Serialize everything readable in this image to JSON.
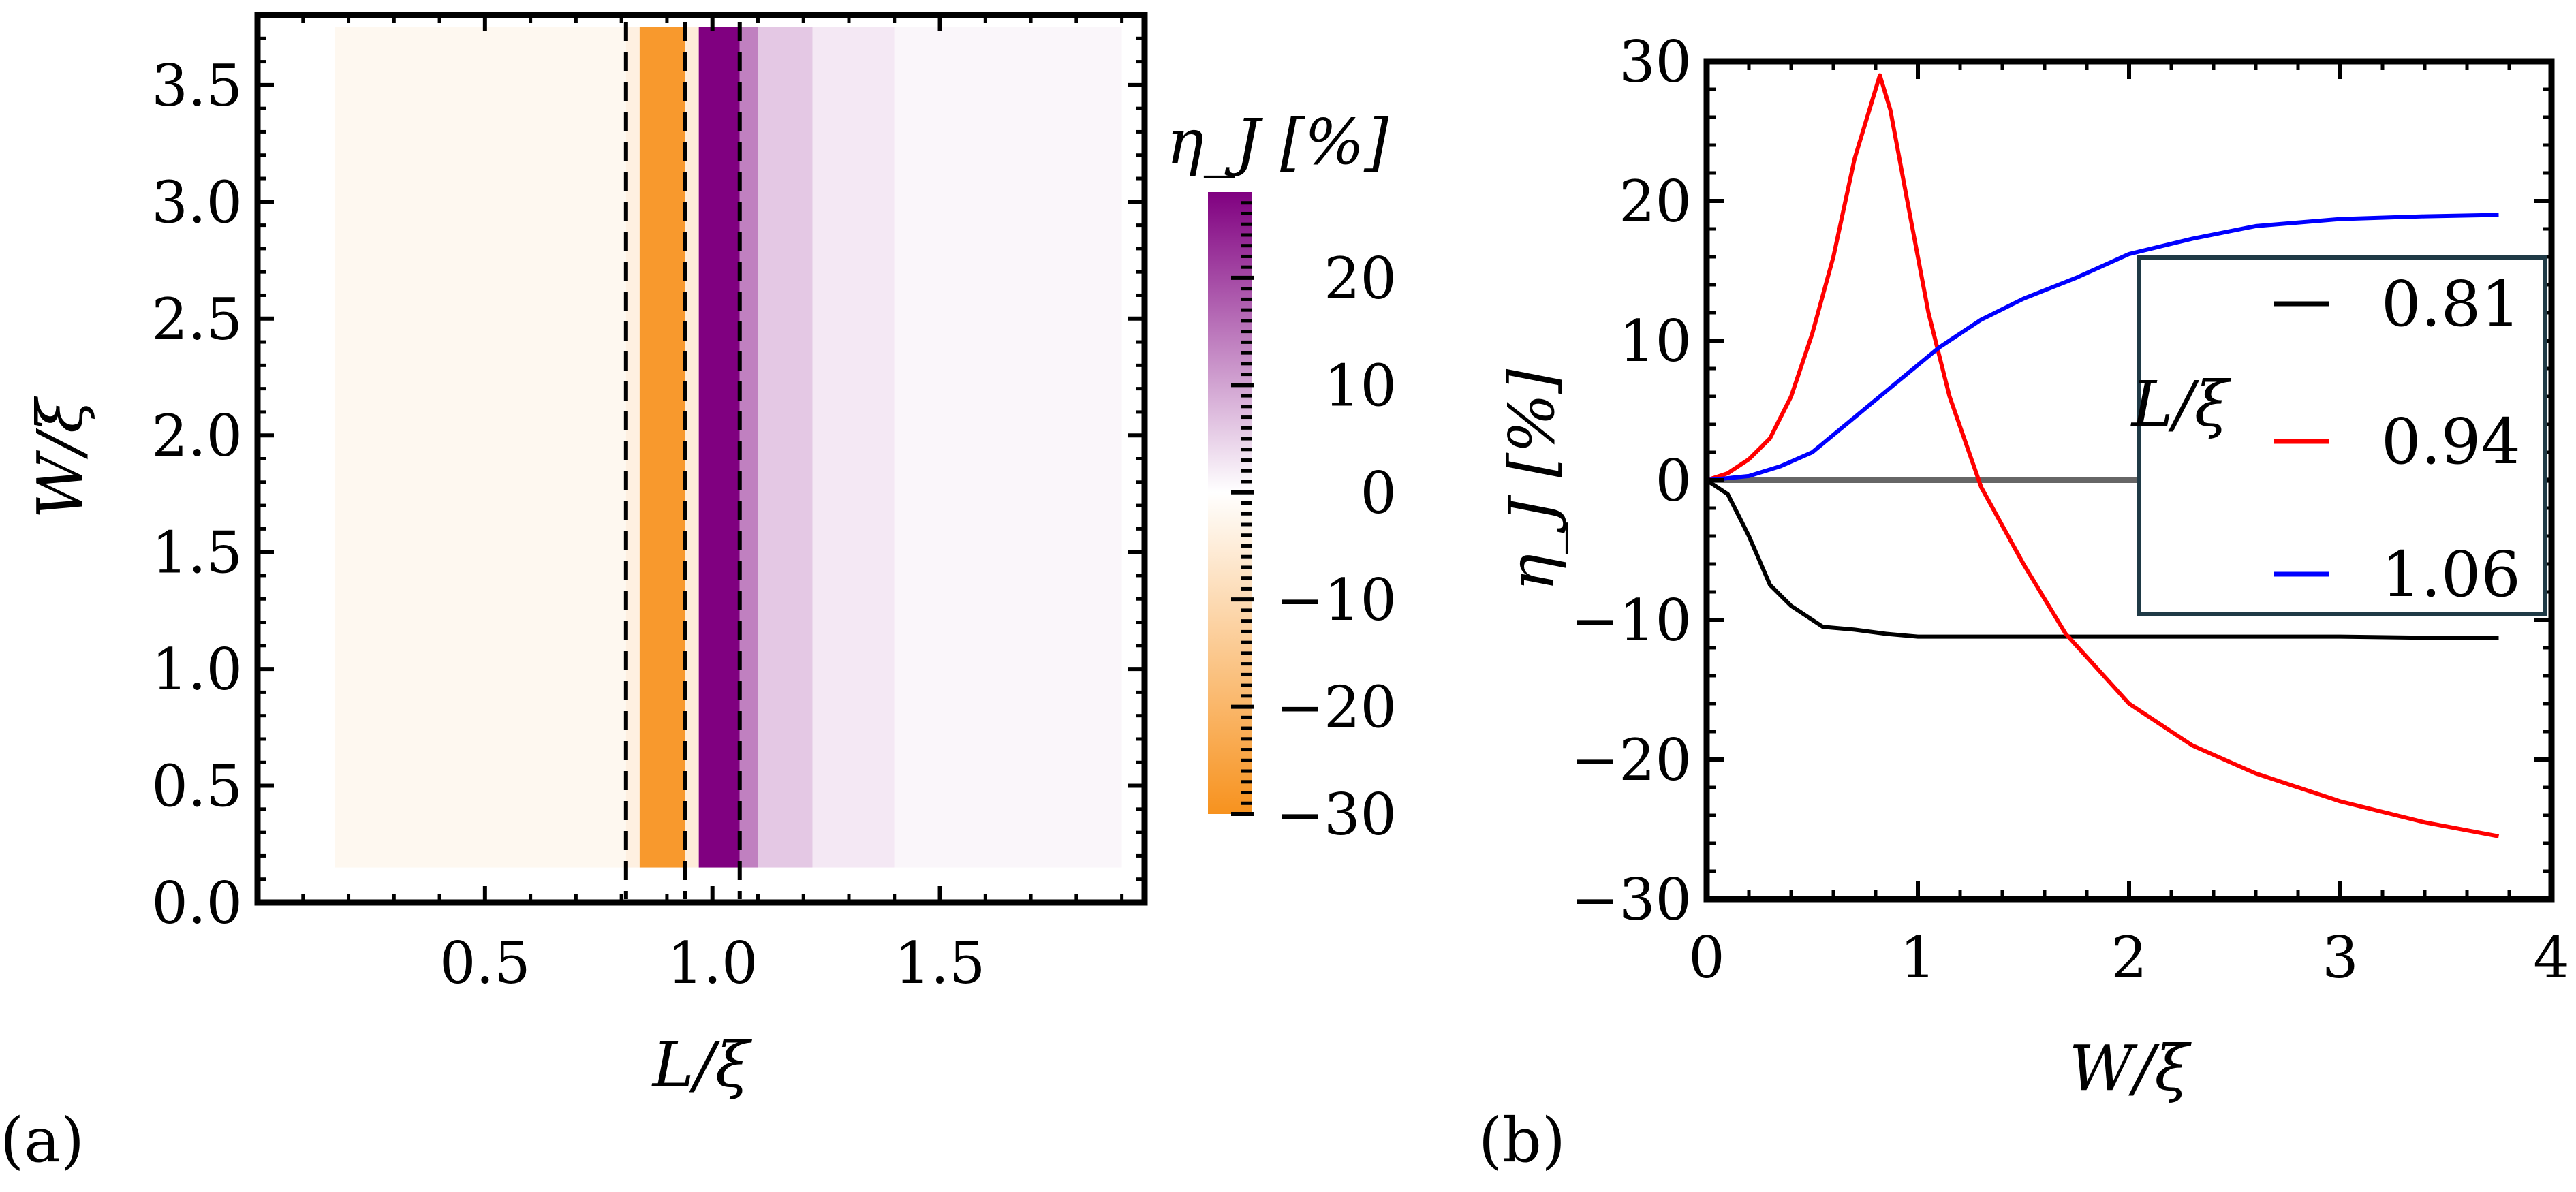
{
  "panels": {
    "a_label": "(a)",
    "b_label": "(b)"
  },
  "colors": {
    "negative": "#f7921e",
    "positive": "#800080",
    "zero": "#ffffff",
    "curve_081": "#000000",
    "curve_094": "#ff0000",
    "curve_106": "#0000ff",
    "zero_line": "#666666",
    "legend_border": "#1f3a46"
  },
  "chart_data": [
    {
      "type": "heatmap",
      "panel": "(a)",
      "xlabel": "L/ξ",
      "ylabel": "W/ξ",
      "xlim": [
        0,
        1.95
      ],
      "ylim": [
        0,
        3.8
      ],
      "xticks": [
        "0.5",
        "1.0",
        "1.5"
      ],
      "xtick_values": [
        0.5,
        1.0,
        1.5
      ],
      "yticks": [
        "0.0",
        "0.5",
        "1.0",
        "1.5",
        "2.0",
        "2.5",
        "3.0",
        "3.5"
      ],
      "ytick_values": [
        0.0,
        0.5,
        1.0,
        1.5,
        2.0,
        2.5,
        3.0,
        3.5
      ],
      "dashed_lines_x": [
        0.81,
        0.94,
        1.06
      ],
      "colorbar": {
        "title": "η_J [%]",
        "range": [
          -30,
          28
        ],
        "ticks": [
          "20",
          "10",
          "0",
          "−10",
          "−20",
          "−30"
        ],
        "tick_values": [
          20,
          10,
          0,
          -10,
          -20,
          -30
        ]
      },
      "columns": [
        {
          "x0": 0.17,
          "x1": 0.81,
          "value": -2
        },
        {
          "x0": 0.81,
          "x1": 0.84,
          "value": -4
        },
        {
          "x0": 0.84,
          "x1": 0.94,
          "value": -28
        },
        {
          "x0": 0.94,
          "x1": 0.97,
          "value": -5
        },
        {
          "x0": 0.97,
          "x1": 1.06,
          "value": 28
        },
        {
          "x0": 1.06,
          "x1": 1.1,
          "value": 14
        },
        {
          "x0": 1.1,
          "x1": 1.22,
          "value": 6
        },
        {
          "x0": 1.22,
          "x1": 1.4,
          "value": 2.5
        },
        {
          "x0": 1.4,
          "x1": 1.9,
          "value": 1
        }
      ]
    },
    {
      "type": "line",
      "panel": "(b)",
      "xlabel": "W/ξ",
      "ylabel": "η_J [%]",
      "xlim": [
        0,
        4
      ],
      "ylim": [
        -30,
        30
      ],
      "xticks": [
        "0",
        "1",
        "2",
        "3",
        "4"
      ],
      "xtick_values": [
        0,
        1,
        2,
        3,
        4
      ],
      "yticks": [
        "30",
        "20",
        "10",
        "0",
        "−10",
        "−20",
        "−30"
      ],
      "ytick_values": [
        30,
        20,
        10,
        0,
        -10,
        -20,
        -30
      ],
      "legend_title": "L/ξ",
      "legend_placement": "right",
      "series": [
        {
          "name": "0.81",
          "color": "#000000",
          "x": [
            0,
            0.1,
            0.2,
            0.3,
            0.4,
            0.55,
            0.7,
            0.85,
            1.0,
            1.5,
            2.0,
            2.5,
            3.0,
            3.5,
            3.75
          ],
          "y": [
            0,
            -1,
            -4,
            -7.5,
            -9,
            -10.5,
            -10.7,
            -11,
            -11.2,
            -11.2,
            -11.2,
            -11.2,
            -11.2,
            -11.3,
            -11.3
          ]
        },
        {
          "name": "0.94",
          "color": "#ff0000",
          "x": [
            0,
            0.1,
            0.2,
            0.3,
            0.4,
            0.5,
            0.6,
            0.7,
            0.82,
            0.87,
            0.95,
            1.05,
            1.15,
            1.3,
            1.5,
            1.7,
            2.0,
            2.3,
            2.6,
            3.0,
            3.4,
            3.75
          ],
          "y": [
            0,
            0.5,
            1.5,
            3,
            6,
            10.5,
            16,
            23,
            29,
            26.5,
            20,
            12,
            6,
            -0.5,
            -6,
            -11,
            -16,
            -19,
            -21,
            -23,
            -24.5,
            -25.5
          ]
        },
        {
          "name": "1.06",
          "color": "#0000ff",
          "x": [
            0,
            0.2,
            0.35,
            0.5,
            0.7,
            0.9,
            1.1,
            1.3,
            1.5,
            1.75,
            2.0,
            2.3,
            2.6,
            3.0,
            3.4,
            3.75
          ],
          "y": [
            0,
            0.3,
            1,
            2,
            4.5,
            7,
            9.5,
            11.5,
            13,
            14.5,
            16.2,
            17.3,
            18.2,
            18.7,
            18.9,
            19
          ]
        }
      ]
    }
  ]
}
